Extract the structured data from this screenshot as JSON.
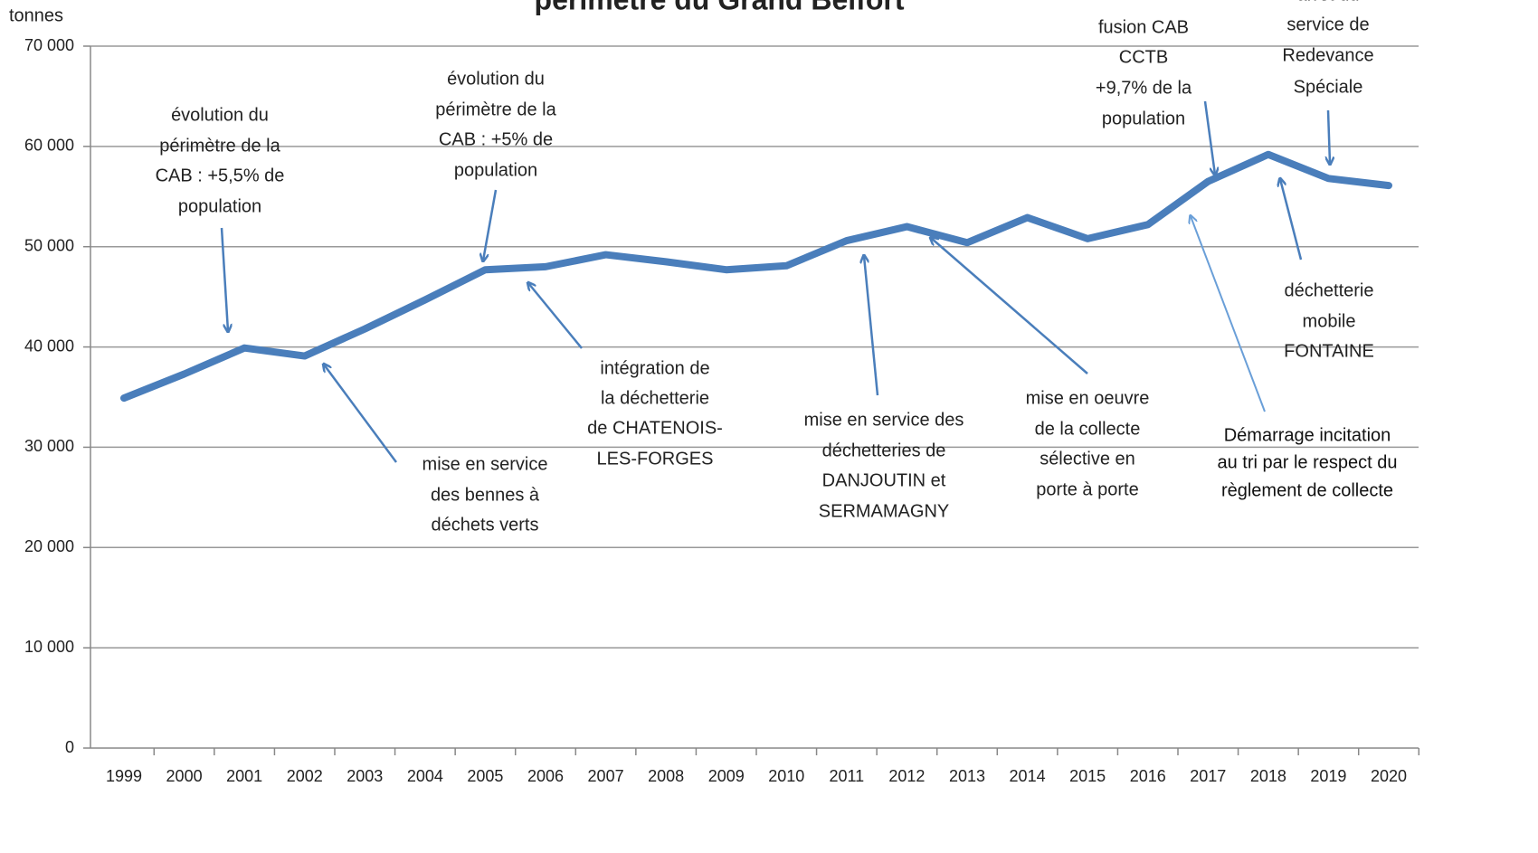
{
  "chart_data": {
    "type": "line",
    "title": "périmètre du Grand Belfort",
    "y_label": "tonnes",
    "categories": [
      "1999",
      "2000",
      "2001",
      "2002",
      "2003",
      "2004",
      "2005",
      "2006",
      "2007",
      "2008",
      "2009",
      "2010",
      "2011",
      "2012",
      "2013",
      "2014",
      "2015",
      "2016",
      "2017",
      "2018",
      "2019",
      "2020"
    ],
    "series": [
      {
        "color": "#4a7ebb",
        "values": [
          34900,
          37300,
          39900,
          39100,
          41800,
          44700,
          47700,
          48000,
          49200,
          48500,
          47700,
          48100,
          50600,
          52000,
          50400,
          52900,
          50800,
          52200,
          56500,
          59200,
          56800,
          56100
        ]
      }
    ],
    "ylim": [
      0,
      70000
    ],
    "yticks": [
      0,
      {
        "value": 10000,
        "label": "10 000"
      },
      {
        "value": 20000,
        "label": "20 000"
      },
      {
        "value": 30000,
        "label": "30 000"
      },
      {
        "value": 40000,
        "label": "40 000"
      },
      {
        "value": 50000,
        "label": "50 000"
      },
      {
        "value": 60000,
        "label": "60 000"
      },
      {
        "value": 70000,
        "label": "70 000"
      }
    ],
    "grid": true,
    "annotations": [
      {
        "lines": [
          "évolution du",
          "périmètre de la",
          "CAB : +5,5% de",
          "population"
        ]
      },
      {
        "lines": [
          "évolution du",
          "périmètre de la",
          "CAB : +5% de",
          "population"
        ]
      },
      {
        "lines": [
          "mise en service",
          "des bennes à",
          "déchets verts"
        ]
      },
      {
        "lines": [
          "intégration de",
          "la déchetterie",
          "de CHATENOIS-",
          "LES-FORGES"
        ]
      },
      {
        "lines": [
          "mise en service des",
          "déchetteries de",
          "DANJOUTIN et",
          "SERMAMAGNY"
        ]
      },
      {
        "lines": [
          "mise en oeuvre",
          "de la collecte",
          "sélective en",
          "porte à porte"
        ]
      },
      {
        "lines": [
          "fusion CAB",
          "CCTB",
          "+9,7% de la",
          "population"
        ]
      },
      {
        "lines": [
          "arrêt du",
          "service de",
          "Redevance",
          "Spéciale"
        ]
      },
      {
        "lines": [
          "déchetterie",
          "mobile",
          "FONTAINE"
        ]
      },
      {
        "lines": [
          "Démarrage incitation",
          "au tri par le respect du",
          "règlement de collecte"
        ]
      }
    ]
  }
}
